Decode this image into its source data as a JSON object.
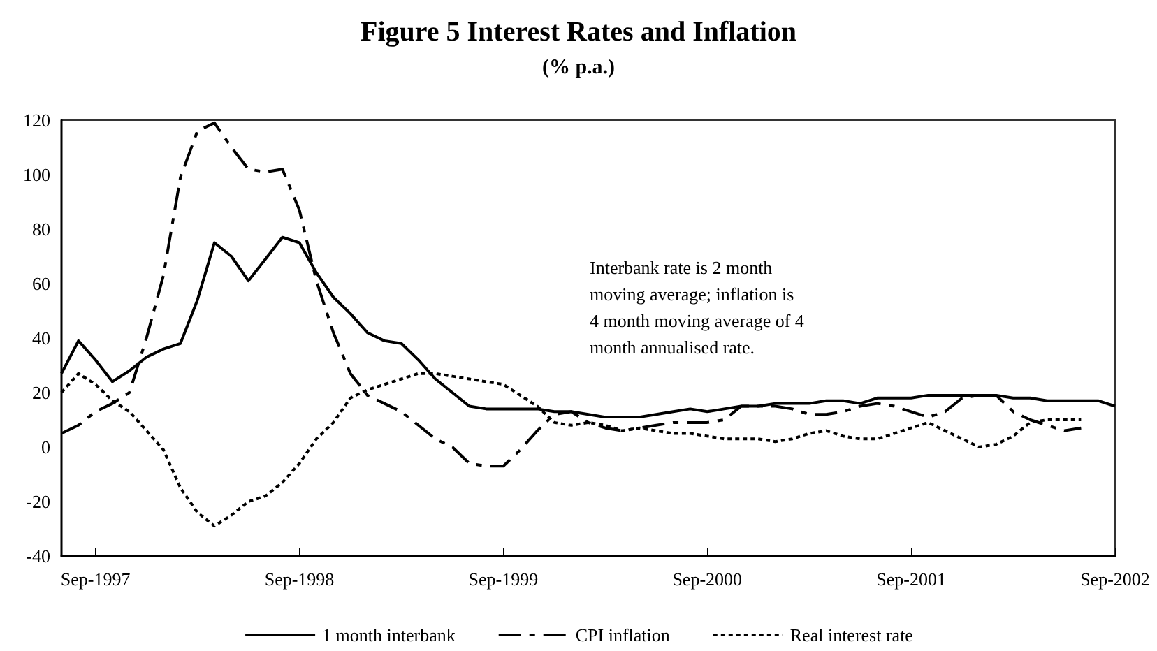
{
  "chart_data": {
    "type": "line",
    "title": "Figure 5 Interest Rates and Inflation",
    "subtitle": "(% p.a.)",
    "categories": [
      null,
      null,
      "Sep-1997",
      null,
      null,
      null,
      null,
      null,
      null,
      null,
      null,
      null,
      null,
      null,
      "Sep-1998",
      null,
      null,
      null,
      null,
      null,
      null,
      null,
      null,
      null,
      null,
      null,
      "Sep-1999",
      null,
      null,
      null,
      null,
      null,
      null,
      null,
      null,
      null,
      null,
      null,
      "Sep-2000",
      null,
      null,
      null,
      null,
      null,
      null,
      null,
      null,
      null,
      null,
      null,
      "Sep-2001",
      null,
      null,
      null,
      null,
      null,
      null,
      null,
      null,
      null,
      null,
      null,
      "Sep-2002"
    ],
    "series": [
      {
        "name": "1 month interbank",
        "color": "#000000",
        "line_style": "solid",
        "values": [
          27,
          39,
          32,
          24,
          28,
          33,
          36,
          38,
          54,
          75,
          70,
          61,
          69,
          77,
          75,
          64,
          55,
          49,
          42,
          39,
          38,
          32,
          25,
          20,
          15,
          14,
          14,
          14,
          14,
          13,
          13,
          12,
          11,
          11,
          11,
          12,
          13,
          14,
          13,
          14,
          15,
          15,
          16,
          16,
          16,
          17,
          17,
          16,
          18,
          18,
          18,
          19,
          19,
          19,
          19,
          19,
          18,
          18,
          17,
          17,
          17,
          17,
          15
        ]
      },
      {
        "name": "CPI inflation",
        "color": "#000000",
        "line_style": "dashed",
        "values": [
          5,
          8,
          13,
          16,
          20,
          40,
          63,
          99,
          116,
          119,
          110,
          102,
          101,
          102,
          87,
          61,
          42,
          27,
          19,
          16,
          13,
          8,
          3,
          0,
          -6,
          -7,
          -7,
          -1,
          6,
          12,
          13,
          9,
          7,
          6,
          7,
          8,
          9,
          9,
          9,
          10,
          15,
          15,
          15,
          14,
          12,
          12,
          13,
          15,
          16,
          15,
          13,
          11,
          13,
          18,
          19,
          19,
          13,
          10,
          8,
          6,
          7,
          null,
          null
        ]
      },
      {
        "name": "Real interest rate",
        "color": "#000000",
        "line_style": "dotted",
        "values": [
          20,
          27,
          23,
          17,
          13,
          6,
          -1,
          -15,
          -24,
          -29,
          -25,
          -20,
          -18,
          -13,
          -6,
          3,
          9,
          18,
          21,
          23,
          25,
          27,
          27,
          26,
          25,
          24,
          23,
          19,
          15,
          9,
          8,
          9,
          8,
          6,
          7,
          6,
          5,
          5,
          4,
          3,
          3,
          3,
          2,
          3,
          5,
          6,
          4,
          3,
          3,
          5,
          7,
          9,
          6,
          3,
          0,
          1,
          4,
          9,
          10,
          10,
          10,
          null,
          null
        ]
      }
    ],
    "ylim": [
      -40,
      120
    ],
    "yticks": [
      -40,
      -20,
      0,
      20,
      40,
      60,
      80,
      100,
      120
    ],
    "grid": false,
    "legend": "bottom",
    "marker": "none",
    "annotations": [
      "Interbank rate is 2 month\nmoving average; inflation is\n4 month moving average of 4\nmonth annualised rate."
    ]
  }
}
